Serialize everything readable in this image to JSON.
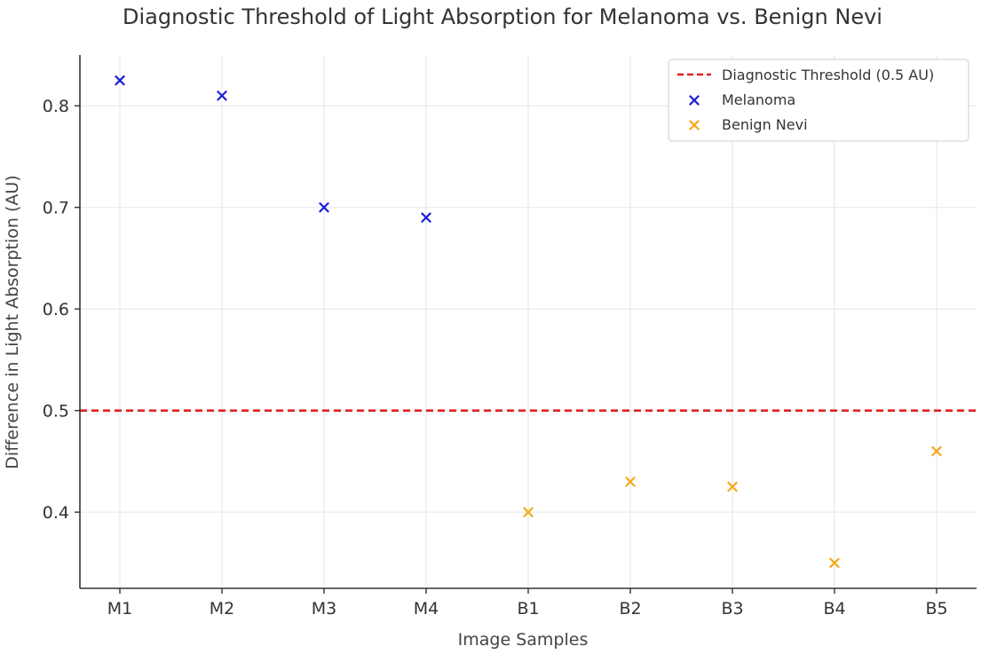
{
  "chart_data": {
    "type": "scatter",
    "title": "Diagnostic Threshold of Light Absorption for Melanoma vs. Benign Nevi",
    "xlabel": "Image Samples",
    "ylabel": "Difference in Light Absorption (AU)",
    "categories": [
      "M1",
      "M2",
      "M3",
      "M4",
      "B1",
      "B2",
      "B3",
      "B4",
      "B5"
    ],
    "ylim": [
      0.325,
      0.85
    ],
    "yticks": [
      "0.4",
      "0.5",
      "0.6",
      "0.7",
      "0.8"
    ],
    "grid": true,
    "legend_position": "top-right",
    "threshold": {
      "name": "Diagnostic Threshold (0.5 AU)",
      "value": 0.5,
      "color": "#e02020",
      "style": "dashed"
    },
    "series": [
      {
        "name": "Melanoma",
        "marker": "x",
        "color": "#1f1fd6",
        "points": [
          {
            "x": "M1",
            "y": 0.825
          },
          {
            "x": "M2",
            "y": 0.81
          },
          {
            "x": "M3",
            "y": 0.7
          },
          {
            "x": "M4",
            "y": 0.69
          }
        ]
      },
      {
        "name": "Benign Nevi",
        "marker": "x",
        "color": "#f5a91a",
        "points": [
          {
            "x": "B1",
            "y": 0.4
          },
          {
            "x": "B2",
            "y": 0.43
          },
          {
            "x": "B3",
            "y": 0.425
          },
          {
            "x": "B4",
            "y": 0.35
          },
          {
            "x": "B5",
            "y": 0.46
          }
        ]
      }
    ]
  }
}
